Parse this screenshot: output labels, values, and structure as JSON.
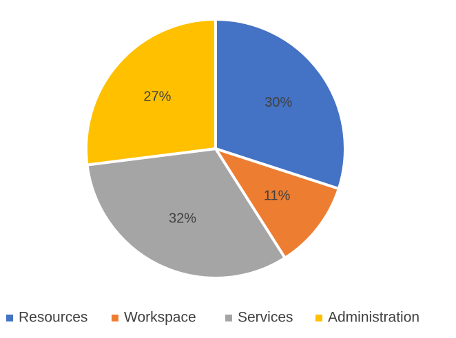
{
  "chart_data": {
    "type": "pie",
    "title": "",
    "categories": [
      "Resources",
      "Workspace",
      "Services",
      "Administration"
    ],
    "values": [
      30,
      11,
      32,
      27
    ],
    "data_labels": [
      "30%",
      "11%",
      "32%",
      "27%"
    ],
    "colors": [
      "#4472C4",
      "#ED7D31",
      "#A5A5A5",
      "#FFC000"
    ],
    "start_angle_deg": 0,
    "direction": "clockwise",
    "legend": {
      "placement": "bottom",
      "entries": [
        "Resources",
        "Workspace",
        "Services",
        "Administration"
      ]
    }
  }
}
